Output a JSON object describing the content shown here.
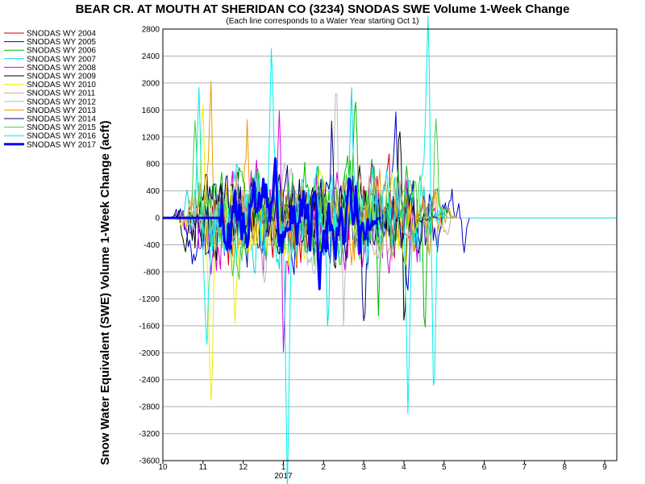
{
  "chart_data": {
    "type": "line",
    "title": "BEAR CR. AT MOUTH AT SHERIDAN CO (3234) SNODAS SWE Volume 1-Week Change",
    "subtitle": "(Each line corresponds to a Water Year starting Oct 1)",
    "ylabel": "Snow Water Equivalent (SWE) Volume 1-Week Change (acft)",
    "ylim": [
      -3600,
      2800
    ],
    "yticks": [
      2800,
      2400,
      2000,
      1600,
      1200,
      800,
      400,
      0,
      -400,
      -800,
      -1200,
      -1600,
      -2000,
      -2400,
      -2800,
      -3200,
      -3600
    ],
    "xlim": [
      10,
      21.3
    ],
    "xticks": [
      {
        "v": 10,
        "label": "10"
      },
      {
        "v": 11,
        "label": "11"
      },
      {
        "v": 12,
        "label": "12"
      },
      {
        "v": 13,
        "label": "1"
      },
      {
        "v": 14,
        "label": "2"
      },
      {
        "v": 15,
        "label": "3"
      },
      {
        "v": 16,
        "label": "4"
      },
      {
        "v": 17,
        "label": "5"
      },
      {
        "v": 18,
        "label": "6"
      },
      {
        "v": 19,
        "label": "7"
      },
      {
        "v": 20,
        "label": "8"
      },
      {
        "v": 21,
        "label": "9"
      }
    ],
    "xsublabel": "2017",
    "grid": "horizontal",
    "legend_position": "left",
    "series": [
      {
        "name": "SNODAS WY 2004",
        "color": "#cc0000",
        "width": 1,
        "start": 10.6,
        "end": 16.4,
        "amp": 500,
        "seed": 4
      },
      {
        "name": "SNODAS WY 2005",
        "color": "#0000cc",
        "width": 1,
        "start": 10.2,
        "end": 17.6,
        "amp": 450,
        "seed": 5,
        "peaks": [
          [
            15.8,
            1450
          ],
          [
            16.1,
            -1600
          ],
          [
            17.5,
            -550
          ]
        ]
      },
      {
        "name": "SNODAS WY 2006",
        "color": "#00bb00",
        "width": 1,
        "start": 10.7,
        "end": 17.2,
        "amp": 550,
        "seed": 6,
        "peaks": [
          [
            14.8,
            1700
          ],
          [
            15.35,
            -1550
          ],
          [
            16.5,
            -1600
          ]
        ]
      },
      {
        "name": "SNODAS WY 2007",
        "color": "#00dddd",
        "width": 1,
        "start": 10.3,
        "end": 17.0,
        "amp": 500,
        "seed": 7,
        "peaks": [
          [
            11.8,
            1100
          ],
          [
            14.1,
            -1650
          ],
          [
            14.7,
            1400
          ]
        ]
      },
      {
        "name": "SNODAS WY 2008",
        "color": "#dd00dd",
        "width": 1,
        "start": 10.4,
        "end": 16.9,
        "amp": 500,
        "seed": 8,
        "peaks": [
          [
            12.9,
            1650
          ],
          [
            13.0,
            -1650
          ],
          [
            15.6,
            -1300
          ]
        ]
      },
      {
        "name": "SNODAS WY 2009",
        "color": "#000000",
        "width": 1,
        "start": 10.2,
        "end": 16.5,
        "amp": 450,
        "seed": 9,
        "peaks": [
          [
            15.9,
            1650
          ],
          [
            16.0,
            -1600
          ]
        ]
      },
      {
        "name": "SNODAS WY 2010",
        "color": "#eeee00",
        "width": 1,
        "start": 10.3,
        "end": 16.6,
        "amp": 450,
        "seed": 10,
        "peaks": [
          [
            11.0,
            1850
          ],
          [
            11.2,
            -2050
          ],
          [
            11.8,
            -1500
          ]
        ]
      },
      {
        "name": "SNODAS WY 2011",
        "color": "#ccaa88",
        "width": 1,
        "start": 10.3,
        "end": 17.3,
        "amp": 400,
        "seed": 11
      },
      {
        "name": "SNODAS WY 2012",
        "color": "#bbbbbb",
        "width": 1,
        "start": 10.5,
        "end": 16.3,
        "amp": 500,
        "seed": 12,
        "peaks": [
          [
            14.3,
            2250
          ],
          [
            14.5,
            -1450
          ]
        ]
      },
      {
        "name": "SNODAS WY 2013",
        "color": "#ee9900",
        "width": 1,
        "start": 10.5,
        "end": 17.3,
        "amp": 450,
        "seed": 13,
        "peaks": [
          [
            11.2,
            1300
          ],
          [
            12.1,
            1200
          ]
        ]
      },
      {
        "name": "SNODAS WY 2014",
        "color": "#000080",
        "width": 1,
        "start": 10.6,
        "end": 16.8,
        "amp": 450,
        "seed": 14,
        "peaks": [
          [
            14.2,
            1350
          ],
          [
            15.0,
            -1300
          ]
        ]
      },
      {
        "name": "SNODAS WY 2015",
        "color": "#44cc44",
        "width": 1,
        "start": 10.6,
        "end": 16.9,
        "amp": 500,
        "seed": 15,
        "peaks": [
          [
            10.8,
            1500
          ],
          [
            16.8,
            1500
          ]
        ]
      },
      {
        "name": "SNODAS WY 2016",
        "color": "#00eeee",
        "width": 1,
        "start": 10.5,
        "end": 17.1,
        "amp": 500,
        "seed": 16,
        "peaks": [
          [
            10.9,
            1800
          ],
          [
            11.1,
            -1850
          ],
          [
            12.7,
            2750
          ],
          [
            13.1,
            -3550
          ],
          [
            16.1,
            -2500
          ],
          [
            16.6,
            2350
          ],
          [
            16.75,
            -2400
          ]
        ]
      },
      {
        "name": "SNODAS WY 2017",
        "color": "#0000ff",
        "width": 3,
        "start": 10.0,
        "end": 15.4,
        "amp": 400,
        "seed": 17,
        "flat_until": 11.4,
        "peaks": [
          [
            12.8,
            850
          ],
          [
            13.9,
            -1000
          ],
          [
            14.8,
            500
          ],
          [
            14.9,
            -450
          ]
        ]
      }
    ]
  }
}
